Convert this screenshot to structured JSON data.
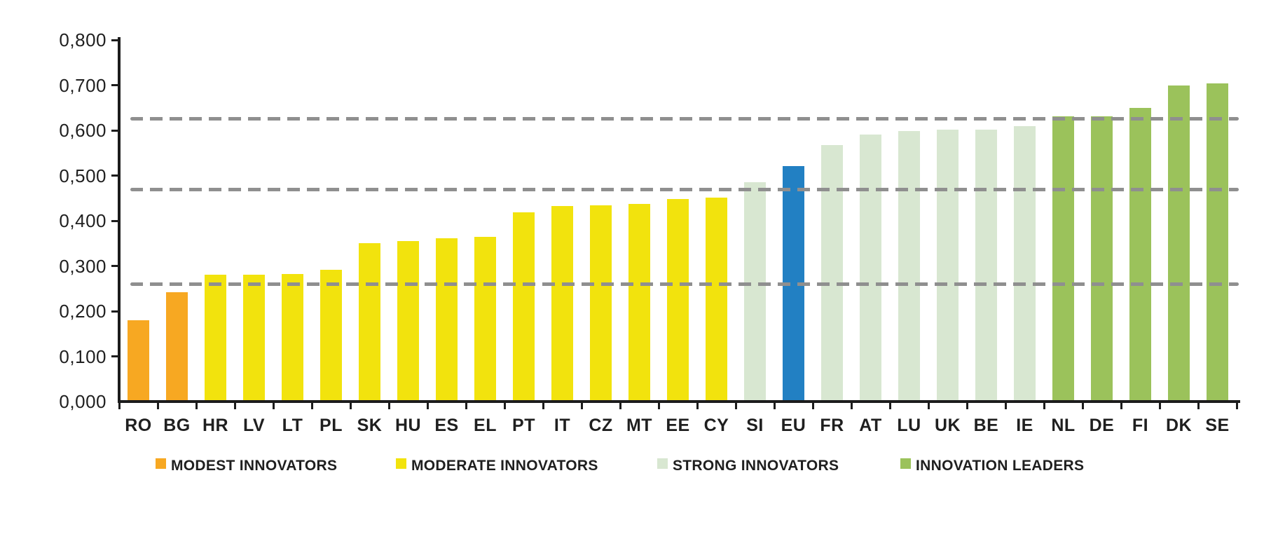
{
  "chart_data": {
    "type": "bar",
    "title": "",
    "xlabel": "",
    "ylabel": "",
    "categories": [
      "RO",
      "BG",
      "HR",
      "LV",
      "LT",
      "PL",
      "SK",
      "HU",
      "ES",
      "EL",
      "PT",
      "IT",
      "CZ",
      "MT",
      "EE",
      "CY",
      "SI",
      "EU",
      "FR",
      "AT",
      "LU",
      "UK",
      "BE",
      "IE",
      "NL",
      "DE",
      "FI",
      "DK",
      "SE"
    ],
    "values": [
      0.18,
      0.242,
      0.28,
      0.281,
      0.282,
      0.292,
      0.35,
      0.355,
      0.361,
      0.364,
      0.419,
      0.432,
      0.434,
      0.437,
      0.448,
      0.451,
      0.485,
      0.521,
      0.568,
      0.591,
      0.598,
      0.602,
      0.602,
      0.609,
      0.631,
      0.631,
      0.649,
      0.7,
      0.704
    ],
    "groups": [
      "modest",
      "modest",
      "moderate",
      "moderate",
      "moderate",
      "moderate",
      "moderate",
      "moderate",
      "moderate",
      "moderate",
      "moderate",
      "moderate",
      "moderate",
      "moderate",
      "moderate",
      "moderate",
      "strong",
      "eu",
      "strong",
      "strong",
      "strong",
      "strong",
      "strong",
      "strong",
      "leader",
      "leader",
      "leader",
      "leader",
      "leader"
    ],
    "ylim": [
      0.0,
      0.8
    ],
    "y_tick_step": 0.1,
    "y_tick_labels": [
      "0,000",
      "0,100",
      "0,200",
      "0,300",
      "0,400",
      "0,500",
      "0,600",
      "0,700",
      "0,800"
    ],
    "threshold_lines": [
      0.26,
      0.469,
      0.625
    ],
    "grid": "horizontal dashed threshold lines only",
    "legend_position": "bottom",
    "colors": {
      "modest": "#f7a822",
      "moderate": "#f2e30d",
      "strong": "#d8e7d1",
      "leader": "#9bc25b",
      "eu": "#2280c3",
      "threshold_dash": "#8f8f8f",
      "axis": "#1c1c1c"
    },
    "legend": [
      {
        "label": "MODEST INNOVATORS",
        "group": "modest"
      },
      {
        "label": "MODERATE INNOVATORS",
        "group": "moderate"
      },
      {
        "label": "STRONG INNOVATORS",
        "group": "strong"
      },
      {
        "label": "INNOVATION LEADERS",
        "group": "leader"
      }
    ]
  }
}
